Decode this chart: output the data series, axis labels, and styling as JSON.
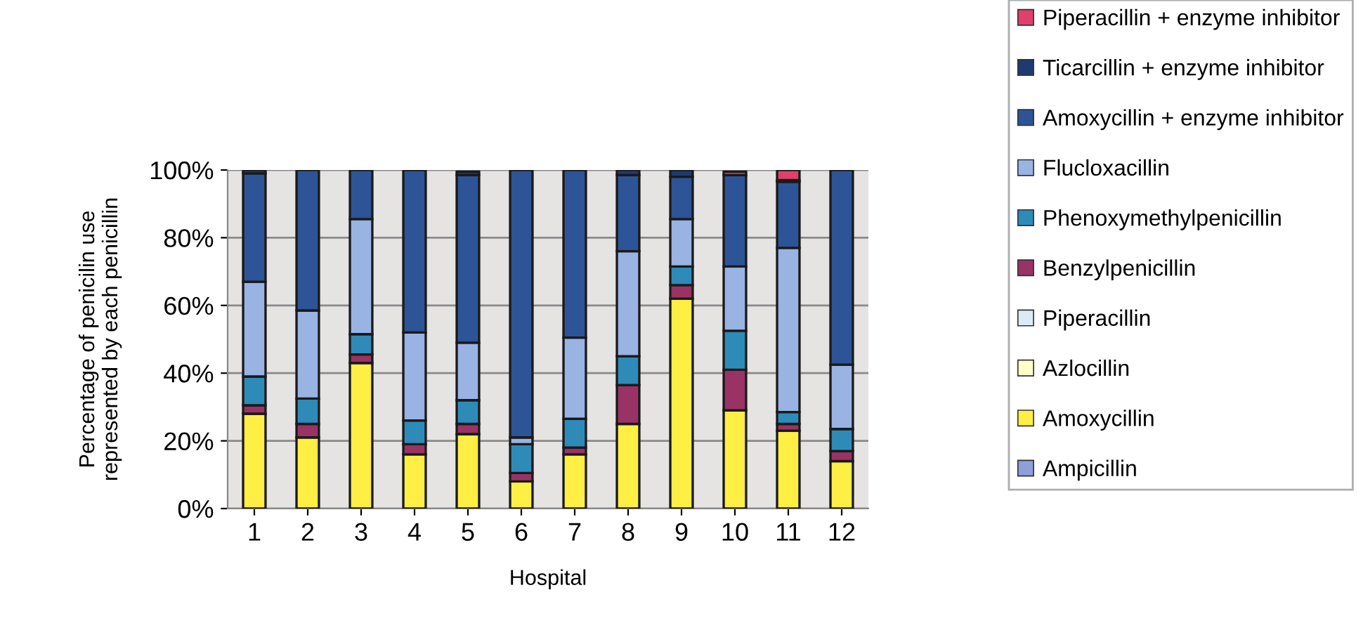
{
  "chart_data": {
    "type": "bar",
    "stacked": true,
    "xlabel": "Hospital",
    "ylabel": "Percentage of penicilin use\nrepresented by each penicillin",
    "categories": [
      "1",
      "2",
      "3",
      "4",
      "5",
      "6",
      "7",
      "8",
      "9",
      "10",
      "11",
      "12"
    ],
    "ylim": [
      0,
      100
    ],
    "yticks": [
      {
        "value": 0,
        "label": "0%"
      },
      {
        "value": 20,
        "label": "20%"
      },
      {
        "value": 40,
        "label": "40%"
      },
      {
        "value": 60,
        "label": "60%"
      },
      {
        "value": 80,
        "label": "80%"
      },
      {
        "value": 100,
        "label": "100%"
      }
    ],
    "grid": "y",
    "legend": "right",
    "series": [
      {
        "name": "Ampicillin",
        "color": "#8f9fdc",
        "values": [
          0,
          0,
          0,
          0,
          0,
          0,
          0,
          0,
          0,
          0,
          0,
          0
        ]
      },
      {
        "name": "Amoxycillin",
        "color": "#ffee44",
        "values": [
          28,
          21,
          43,
          16,
          22,
          8,
          16,
          25,
          62,
          29,
          23,
          14
        ]
      },
      {
        "name": "Azlocillin",
        "color": "#ffffcc",
        "values": [
          0,
          0,
          0,
          0,
          0,
          0,
          0,
          0,
          0,
          0,
          0,
          0
        ]
      },
      {
        "name": "Piperacillin",
        "color": "#dceaf4",
        "values": [
          0,
          0,
          0,
          0,
          0,
          0,
          0,
          0,
          0,
          0,
          0,
          0
        ]
      },
      {
        "name": "Benzylpenicillin",
        "color": "#993366",
        "values": [
          2.5,
          4,
          2.5,
          3,
          3,
          2.5,
          2,
          11.5,
          4,
          12,
          2,
          3
        ]
      },
      {
        "name": "Phenoxymethylpenicillin",
        "color": "#2e8bb8",
        "values": [
          8.5,
          7.5,
          6,
          7,
          7,
          8.5,
          8.5,
          8.5,
          5.5,
          11.5,
          3.5,
          6.5
        ]
      },
      {
        "name": "Flucloxacillin",
        "color": "#99b3e3",
        "values": [
          28,
          26,
          34,
          26,
          17,
          2,
          24,
          31,
          14,
          19,
          48.5,
          19
        ]
      },
      {
        "name": "Amoxycillin + enzyme inhibitor",
        "color": "#2d5496",
        "values": [
          32,
          41.5,
          14.5,
          48,
          49.5,
          79,
          49.5,
          22.5,
          12.5,
          27,
          19.5,
          57.5
        ]
      },
      {
        "name": "Ticarcillin + enzyme inhibitor",
        "color": "#1f3a70",
        "values": [
          1,
          0,
          0,
          0,
          1,
          0,
          0,
          1.5,
          2,
          0,
          0.5,
          0
        ]
      },
      {
        "name": "Piperacillin + enzyme inhibitor",
        "color": "#e0406a",
        "values": [
          0,
          0,
          0,
          0,
          0,
          0,
          0,
          0,
          0,
          1,
          3,
          0
        ]
      }
    ]
  }
}
